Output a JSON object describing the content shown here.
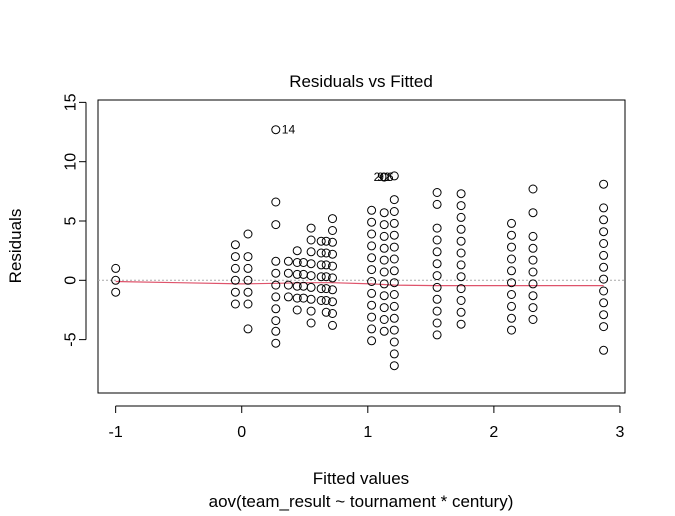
{
  "chart_data": {
    "type": "scatter",
    "title": "Residuals vs Fitted",
    "xlabel": "Fitted values",
    "subtitle": "aov(team_result ~ tournament * century)",
    "ylabel": "Residuals",
    "xlim": [
      -1.14,
      3.04
    ],
    "ylim": [
      -9.5,
      15.2
    ],
    "x_ticks": [
      -1,
      0,
      1,
      2,
      3
    ],
    "y_ticks": [
      -5,
      0,
      5,
      10,
      15
    ],
    "x_tick_labels": [
      "-1",
      "0",
      "1",
      "2",
      "3"
    ],
    "y_tick_labels": [
      "-5",
      "0",
      "5",
      "10",
      "15"
    ],
    "grid": false,
    "colors": {
      "points": "#000000",
      "smoother": "#df536b",
      "reference": "#a9a9a9"
    },
    "reference_line_y": 0,
    "points": [
      {
        "x": -1.0,
        "ys": [
          1.0,
          0.0,
          -1.0
        ]
      },
      {
        "x": -0.05,
        "ys": [
          3.0,
          2.0,
          1.0,
          0.0,
          -1.0,
          -2.0
        ]
      },
      {
        "x": 0.05,
        "ys": [
          3.9,
          2.0,
          1.0,
          0.0,
          -1.0,
          -2.0,
          -4.1
        ]
      },
      {
        "x": 0.27,
        "ys": [
          12.7,
          6.6,
          4.7,
          1.6,
          0.6,
          -0.4,
          -1.4,
          -2.4,
          -3.4,
          -4.3,
          -5.3
        ]
      },
      {
        "x": 0.37,
        "ys": [
          1.6,
          0.6,
          -0.4,
          -1.4
        ]
      },
      {
        "x": 0.44,
        "ys": [
          2.5,
          1.5,
          0.5,
          -0.5,
          -1.5,
          -2.5
        ]
      },
      {
        "x": 0.49,
        "ys": [
          1.5,
          0.5,
          -0.5,
          -1.5
        ]
      },
      {
        "x": 0.55,
        "ys": [
          4.4,
          3.4,
          2.4,
          1.4,
          0.4,
          -0.6,
          -1.6,
          -2.6,
          -3.6
        ]
      },
      {
        "x": 0.63,
        "ys": [
          3.3,
          2.3,
          1.3,
          0.3,
          -0.7,
          -1.7
        ]
      },
      {
        "x": 0.67,
        "ys": [
          3.3,
          2.3,
          1.3,
          0.3,
          -0.7,
          -1.7,
          -2.7
        ]
      },
      {
        "x": 0.72,
        "ys": [
          5.2,
          4.2,
          3.2,
          2.2,
          1.2,
          0.2,
          -0.8,
          -1.8,
          -2.8,
          -3.8
        ]
      },
      {
        "x": 1.03,
        "ys": [
          5.9,
          4.9,
          3.9,
          2.9,
          1.9,
          0.9,
          -0.1,
          -1.1,
          -2.1,
          -3.1,
          -4.1,
          -5.1
        ]
      },
      {
        "x": 1.13,
        "ys": [
          8.7,
          5.7,
          4.7,
          3.7,
          2.7,
          1.7,
          0.7,
          -0.3,
          -1.3,
          -2.3,
          -3.3,
          -4.3
        ]
      },
      {
        "x": 1.21,
        "ys": [
          8.8,
          6.8,
          5.8,
          4.8,
          3.8,
          2.8,
          1.8,
          0.8,
          -0.2,
          -1.2,
          -2.2,
          -3.2,
          -4.2,
          -5.2,
          -6.2,
          -7.2
        ]
      },
      {
        "x": 1.55,
        "ys": [
          7.4,
          6.4,
          4.4,
          3.4,
          2.4,
          1.4,
          0.4,
          -0.6,
          -1.6,
          -2.6,
          -3.6,
          -4.6
        ]
      },
      {
        "x": 1.74,
        "ys": [
          7.3,
          6.3,
          5.3,
          4.3,
          3.3,
          2.3,
          1.3,
          0.3,
          -0.7,
          -1.7,
          -2.7,
          -3.7
        ]
      },
      {
        "x": 2.14,
        "ys": [
          4.8,
          3.8,
          2.8,
          1.8,
          0.8,
          -0.2,
          -1.2,
          -2.2,
          -3.2,
          -4.2
        ]
      },
      {
        "x": 2.31,
        "ys": [
          7.7,
          5.7,
          3.7,
          2.7,
          1.7,
          0.7,
          -0.3,
          -1.3,
          -2.3,
          -3.3
        ]
      },
      {
        "x": 2.87,
        "ys": [
          8.1,
          6.1,
          5.1,
          4.1,
          3.1,
          2.1,
          1.1,
          0.1,
          -0.9,
          -1.9,
          -2.9,
          -3.9,
          -5.9
        ]
      }
    ],
    "annotations": [
      {
        "x": 0.27,
        "y": 12.7,
        "label": "14",
        "align": "right"
      },
      {
        "x": 1.03,
        "y": 8.7,
        "label": "206",
        "align": "right-of-left"
      },
      {
        "x": 1.13,
        "y": 8.7,
        "label": "92",
        "align": "left"
      }
    ],
    "smoother": [
      {
        "x": -1.0,
        "y": -0.1
      },
      {
        "x": -0.5,
        "y": -0.2
      },
      {
        "x": 0.0,
        "y": -0.3
      },
      {
        "x": 0.27,
        "y": -0.25
      },
      {
        "x": 0.55,
        "y": -0.2
      },
      {
        "x": 0.72,
        "y": -0.2
      },
      {
        "x": 1.03,
        "y": -0.3
      },
      {
        "x": 1.21,
        "y": -0.4
      },
      {
        "x": 1.55,
        "y": -0.45
      },
      {
        "x": 2.14,
        "y": -0.45
      },
      {
        "x": 2.87,
        "y": -0.45
      }
    ]
  }
}
